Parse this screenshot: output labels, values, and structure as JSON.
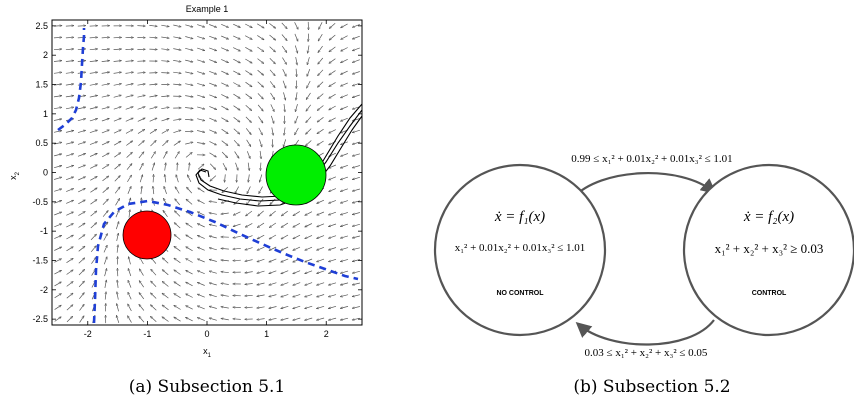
{
  "left_panel": {
    "title": "Example 1",
    "xlabel": "x",
    "xlabel_sub": "1",
    "ylabel": "x",
    "ylabel_sub": "2",
    "xlim": [
      -2.6,
      2.6
    ],
    "ylim": [
      -2.6,
      2.6
    ],
    "x_ticks": [
      "-2",
      "-1",
      "0",
      "1",
      "2"
    ],
    "x_tick_values": [
      -2,
      -1,
      0,
      1,
      2
    ],
    "y_ticks": [
      "2.5",
      "2",
      "1.5",
      "1",
      "0.5",
      "0",
      "-0.5",
      "-1",
      "-1.5",
      "-2",
      "-2.5"
    ],
    "y_tick_values": [
      2.5,
      2,
      1.5,
      1,
      0.5,
      0,
      -0.5,
      -1,
      -1.5,
      -2,
      -2.5
    ],
    "caption": "(a) Subsection 5.1",
    "colors": {
      "target_region": "#00ee00",
      "unsafe_region": "#ff0000",
      "barrier": "#1f3fd6",
      "vector_field": "#555555",
      "trajectory": "#000000"
    }
  },
  "right_panel": {
    "state_left": {
      "dynamics": "ẋ = f₁(x)",
      "invariant": "x₁² + 0.01x₂² + 0.01x₃² ≤ 1.01",
      "label": "NO CONTROL"
    },
    "state_right": {
      "dynamics": "ẋ = f₂(x)",
      "invariant": "x₁² + x₂² + x₃² ≥ 0.03",
      "label": "CONTROL"
    },
    "transition_top": "0.99 ≤ x₁² + 0.01x₂² + 0.01x₃² ≤ 1.01",
    "transition_bottom": "0.03 ≤ x₁² + x₂² + x₃² ≤ 0.05",
    "caption": "(b) Subsection 5.2"
  }
}
